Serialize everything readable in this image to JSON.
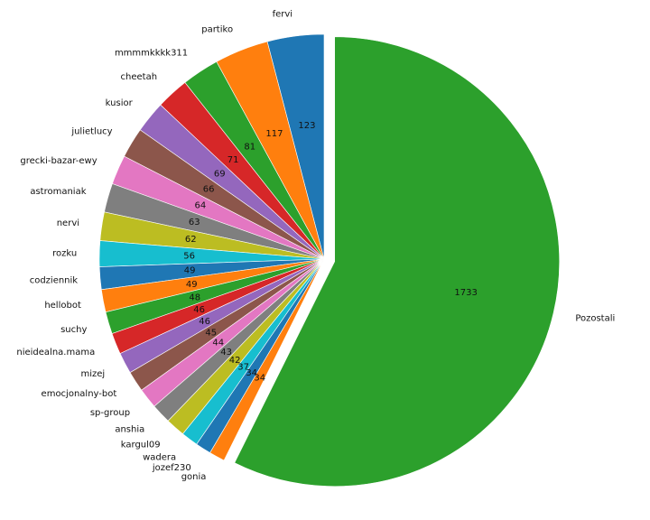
{
  "chart_data": {
    "type": "pie",
    "title": "",
    "start_angle_deg": 90,
    "direction": "counterclockwise",
    "explode": [
      "Pozostali"
    ],
    "labels": [
      "fervi",
      "partiko",
      "mmmmkkkk311",
      "cheetah",
      "kusior",
      "julietlucy",
      "grecki-bazar-ewy",
      "astromaniak",
      "nervi",
      "rozku",
      "codziennik",
      "hellobot",
      "suchy",
      "nieidealna.mama",
      "mizej",
      "emocjonalny-bot",
      "sp-group",
      "anshia",
      "kargul09",
      "wadera",
      "jozef230",
      "gonia",
      "Pozostali"
    ],
    "values": [
      123,
      117,
      81,
      71,
      69,
      66,
      64,
      63,
      62,
      56,
      49,
      49,
      48,
      46,
      46,
      45,
      44,
      43,
      42,
      37,
      34,
      34,
      1733
    ],
    "value_labels": [
      "123",
      "117",
      "81",
      "71",
      "69",
      "66",
      "64",
      "63",
      "62",
      "56",
      "49",
      "49",
      "48",
      "46",
      "46",
      "45",
      "44",
      "43",
      "42",
      "37",
      "34",
      "34",
      "1733"
    ],
    "colors": [
      "#1f77b4",
      "#ff7f0e",
      "#2ca02c",
      "#d62728",
      "#9467bd",
      "#8c564b",
      "#e377c2",
      "#7f7f7f",
      "#bcbd22",
      "#17becf",
      "#1f77b4",
      "#ff7f0e",
      "#2ca02c",
      "#d62728",
      "#9467bd",
      "#8c564b",
      "#e377c2",
      "#7f7f7f",
      "#bcbd22",
      "#17becf",
      "#1f77b4",
      "#ff7f0e",
      "#2ca02c"
    ],
    "legend": "none",
    "grid": false
  }
}
